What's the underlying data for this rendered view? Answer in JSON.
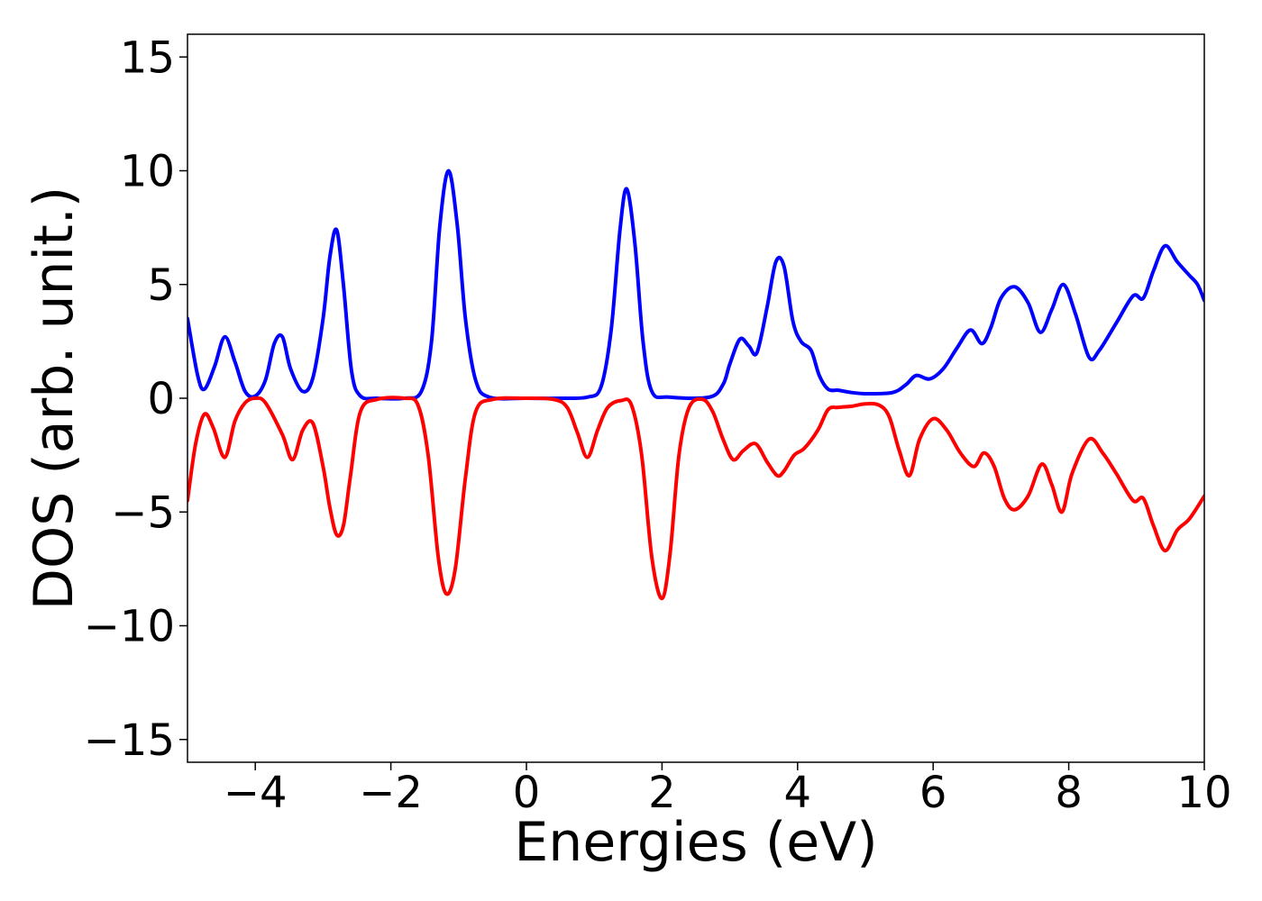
{
  "chart_data": {
    "type": "line",
    "title": "",
    "xlabel": "Energies (eV)",
    "ylabel": "DOS (arb. unit.)",
    "xlim": [
      -5,
      10
    ],
    "ylim": [
      -16,
      16
    ],
    "grid": false,
    "legend": "none",
    "x_ticks": [
      -4,
      -2,
      0,
      2,
      4,
      6,
      8,
      10
    ],
    "y_ticks": [
      -15,
      -10,
      -5,
      0,
      5,
      10,
      15
    ],
    "x_tick_labels": [
      "−4",
      "−2",
      "0",
      "2",
      "4",
      "6",
      "8",
      "10"
    ],
    "y_tick_labels": [
      "−15",
      "−10",
      "−5",
      "0",
      "5",
      "10",
      "15"
    ],
    "series": [
      {
        "color": "#0000ff",
        "x": [
          -5.0,
          -4.85,
          -4.75,
          -4.6,
          -4.45,
          -4.3,
          -4.15,
          -4.0,
          -3.85,
          -3.72,
          -3.6,
          -3.48,
          -3.3,
          -3.15,
          -3.0,
          -2.9,
          -2.8,
          -2.7,
          -2.58,
          -2.45,
          -2.2,
          -1.8,
          -1.55,
          -1.4,
          -1.28,
          -1.15,
          -1.02,
          -0.9,
          -0.75,
          -0.55,
          0.0,
          0.5,
          0.9,
          1.1,
          1.25,
          1.38,
          1.48,
          1.6,
          1.72,
          1.85,
          2.1,
          2.7,
          2.9,
          3.0,
          3.15,
          3.28,
          3.4,
          3.55,
          3.68,
          3.8,
          3.93,
          4.05,
          4.2,
          4.32,
          4.45,
          4.6,
          4.8,
          5.0,
          5.4,
          5.6,
          5.75,
          5.95,
          6.15,
          6.35,
          6.55,
          6.72,
          6.85,
          7.0,
          7.2,
          7.4,
          7.58,
          7.75,
          7.92,
          8.1,
          8.3,
          8.45,
          8.7,
          8.95,
          9.1,
          9.25,
          9.42,
          9.6,
          9.78,
          9.9,
          10.0
        ],
        "y": [
          3.5,
          1.0,
          0.4,
          1.4,
          2.7,
          1.6,
          0.3,
          0.1,
          0.8,
          2.4,
          2.7,
          1.3,
          0.3,
          0.9,
          3.5,
          6.2,
          7.4,
          5.0,
          1.2,
          0.1,
          0.0,
          0.0,
          0.3,
          2.5,
          7.5,
          10.0,
          7.6,
          3.5,
          0.8,
          0.05,
          0.0,
          0.0,
          0.05,
          0.5,
          3.0,
          7.4,
          9.2,
          6.8,
          2.5,
          0.3,
          0.05,
          0.05,
          0.6,
          1.5,
          2.6,
          2.3,
          2.0,
          4.0,
          6.0,
          5.8,
          3.4,
          2.5,
          2.1,
          1.0,
          0.4,
          0.35,
          0.25,
          0.2,
          0.25,
          0.6,
          1.0,
          0.85,
          1.3,
          2.2,
          3.0,
          2.4,
          3.1,
          4.4,
          4.9,
          4.2,
          2.9,
          3.9,
          5.0,
          3.7,
          1.8,
          2.1,
          3.3,
          4.5,
          4.4,
          5.6,
          6.7,
          6.0,
          5.4,
          5.0,
          4.3
        ]
      },
      {
        "color": "#ff0000",
        "x": [
          -5.0,
          -4.88,
          -4.75,
          -4.62,
          -4.45,
          -4.3,
          -4.15,
          -4.0,
          -3.85,
          -3.6,
          -3.45,
          -3.3,
          -3.15,
          -3.0,
          -2.9,
          -2.8,
          -2.7,
          -2.6,
          -2.45,
          -2.2,
          -1.8,
          -1.6,
          -1.45,
          -1.3,
          -1.18,
          -1.05,
          -0.9,
          -0.75,
          -0.5,
          0.0,
          0.4,
          0.6,
          0.75,
          0.9,
          1.05,
          1.2,
          1.4,
          1.55,
          1.7,
          1.85,
          2.0,
          2.12,
          2.25,
          2.4,
          2.6,
          2.75,
          2.9,
          3.05,
          3.2,
          3.38,
          3.55,
          3.7,
          3.8,
          3.95,
          4.1,
          4.3,
          4.45,
          4.6,
          4.8,
          5.0,
          5.2,
          5.35,
          5.5,
          5.65,
          5.8,
          6.0,
          6.2,
          6.4,
          6.6,
          6.75,
          6.9,
          7.05,
          7.2,
          7.4,
          7.6,
          7.75,
          7.9,
          8.05,
          8.3,
          8.5,
          8.7,
          8.95,
          9.1,
          9.25,
          9.42,
          9.6,
          9.78,
          10.0
        ],
        "y": [
          -4.5,
          -2.0,
          -0.7,
          -1.3,
          -2.6,
          -1.0,
          -0.2,
          0.0,
          -0.2,
          -1.6,
          -2.7,
          -1.4,
          -1.1,
          -3.0,
          -4.8,
          -6.0,
          -5.6,
          -3.5,
          -0.6,
          -0.05,
          0.0,
          -0.3,
          -2.5,
          -7.0,
          -8.6,
          -7.5,
          -3.5,
          -0.6,
          -0.05,
          0.0,
          -0.05,
          -0.4,
          -1.5,
          -2.6,
          -1.4,
          -0.4,
          -0.1,
          -0.3,
          -2.5,
          -7.0,
          -8.8,
          -6.8,
          -2.5,
          -0.4,
          -0.05,
          -0.6,
          -1.8,
          -2.7,
          -2.3,
          -2.0,
          -2.8,
          -3.4,
          -3.2,
          -2.5,
          -2.2,
          -1.4,
          -0.5,
          -0.4,
          -0.35,
          -0.25,
          -0.3,
          -0.8,
          -2.3,
          -3.4,
          -1.8,
          -0.9,
          -1.4,
          -2.4,
          -3.0,
          -2.4,
          -3.0,
          -4.4,
          -4.9,
          -4.3,
          -2.9,
          -3.8,
          -5.0,
          -3.3,
          -1.8,
          -2.4,
          -3.3,
          -4.5,
          -4.4,
          -5.6,
          -6.7,
          -5.8,
          -5.3,
          -4.3
        ]
      }
    ]
  }
}
